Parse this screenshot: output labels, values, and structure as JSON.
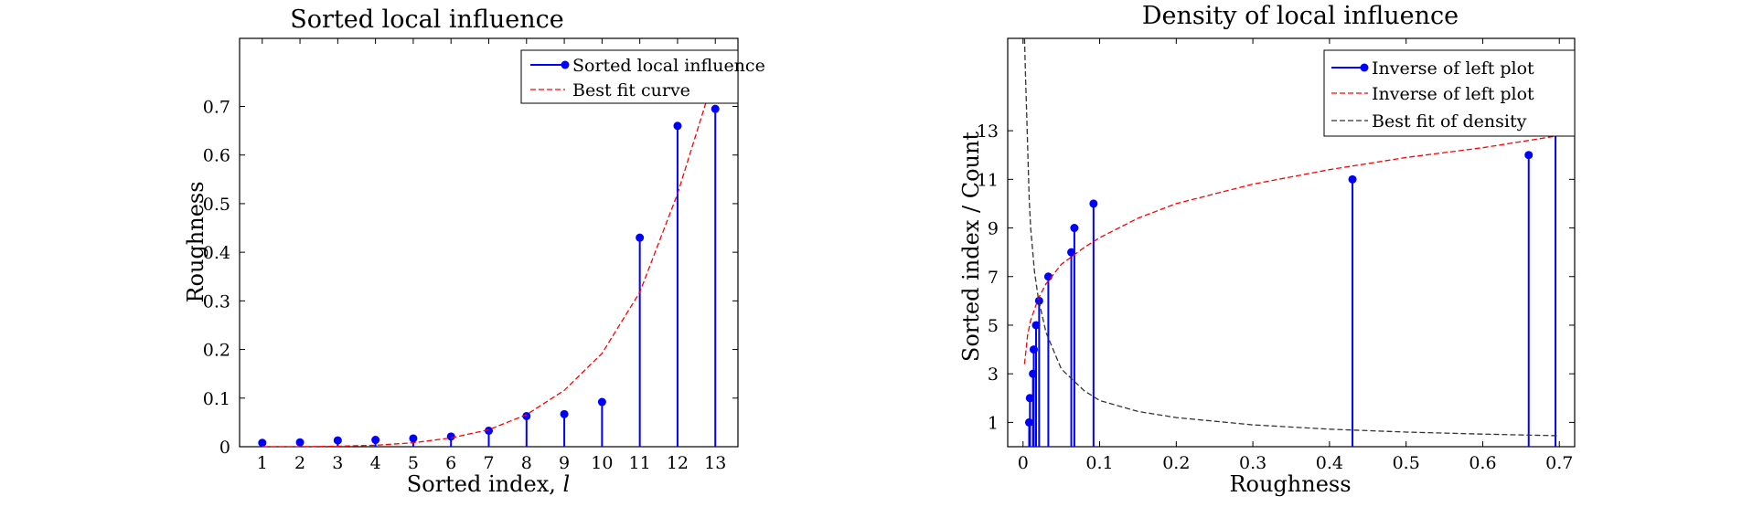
{
  "chart_data": [
    {
      "type": "stem",
      "title": "Sorted local influence",
      "xlabel": "Sorted index, ",
      "xlabel_var": "l",
      "ylabel": "Roughness",
      "xlim": [
        0.4,
        13.6
      ],
      "ylim": [
        0,
        0.84
      ],
      "xticks": [
        1,
        2,
        3,
        4,
        5,
        6,
        7,
        8,
        9,
        10,
        11,
        12,
        13
      ],
      "yticks": [
        0,
        0.1,
        0.2,
        0.3,
        0.4,
        0.5,
        0.6,
        0.7
      ],
      "legend_position": "top-right",
      "series": [
        {
          "name": "Sorted local influence",
          "style": "stem",
          "color": "#0000ff",
          "x": [
            1,
            2,
            3,
            4,
            5,
            6,
            7,
            8,
            9,
            10,
            11,
            12,
            13
          ],
          "y": [
            0.008,
            0.009,
            0.013,
            0.014,
            0.017,
            0.021,
            0.033,
            0.063,
            0.067,
            0.092,
            0.43,
            0.66,
            0.695
          ]
        },
        {
          "name": "Best fit curve",
          "style": "dashed",
          "color": "#ff0000",
          "x": [
            1,
            2,
            3,
            4,
            5,
            6,
            7,
            8,
            9,
            10,
            11,
            12,
            12.8
          ],
          "y": [
            0.0,
            0.0,
            0.001,
            0.003,
            0.008,
            0.018,
            0.035,
            0.066,
            0.116,
            0.192,
            0.318,
            0.52,
            0.72
          ]
        }
      ]
    },
    {
      "type": "stem",
      "title": "Density of local influence",
      "xlabel": "Roughness",
      "ylabel": "Sorted index / Count",
      "xlim": [
        -0.02,
        0.72
      ],
      "ylim": [
        0,
        16.8
      ],
      "xticks": [
        0,
        0.1,
        0.2,
        0.3,
        0.4,
        0.5,
        0.6,
        0.7
      ],
      "yticks": [
        1,
        3,
        5,
        7,
        9,
        11,
        13
      ],
      "legend_position": "top-right",
      "series": [
        {
          "name": "Inverse of left plot",
          "style": "stem",
          "color": "#0000ff",
          "x": [
            0.008,
            0.009,
            0.013,
            0.014,
            0.017,
            0.021,
            0.033,
            0.063,
            0.067,
            0.092,
            0.43,
            0.66,
            0.695
          ],
          "y": [
            1,
            2,
            3,
            4,
            5,
            6,
            7,
            8,
            9,
            10,
            11,
            12,
            13
          ]
        },
        {
          "name": "Inverse of left plot",
          "style": "dashed",
          "color": "#ff0000",
          "x": [
            0.002,
            0.006,
            0.01,
            0.02,
            0.03,
            0.05,
            0.08,
            0.1,
            0.15,
            0.2,
            0.3,
            0.4,
            0.5,
            0.6,
            0.7
          ],
          "y": [
            3.4,
            4.6,
            5.2,
            6.1,
            6.7,
            7.5,
            8.2,
            8.6,
            9.4,
            10.0,
            10.8,
            11.4,
            11.9,
            12.3,
            12.8
          ]
        },
        {
          "name": "Best fit of density",
          "style": "dashed",
          "color": "#333333",
          "x": [
            0.002,
            0.003,
            0.005,
            0.008,
            0.01,
            0.015,
            0.02,
            0.03,
            0.05,
            0.08,
            0.1,
            0.15,
            0.2,
            0.3,
            0.4,
            0.5,
            0.6,
            0.7
          ],
          "y": [
            16.8,
            15.5,
            13.5,
            10.2,
            9.0,
            7.2,
            6.1,
            4.7,
            3.2,
            2.3,
            1.9,
            1.45,
            1.2,
            0.9,
            0.72,
            0.6,
            0.52,
            0.45
          ]
        }
      ]
    }
  ]
}
